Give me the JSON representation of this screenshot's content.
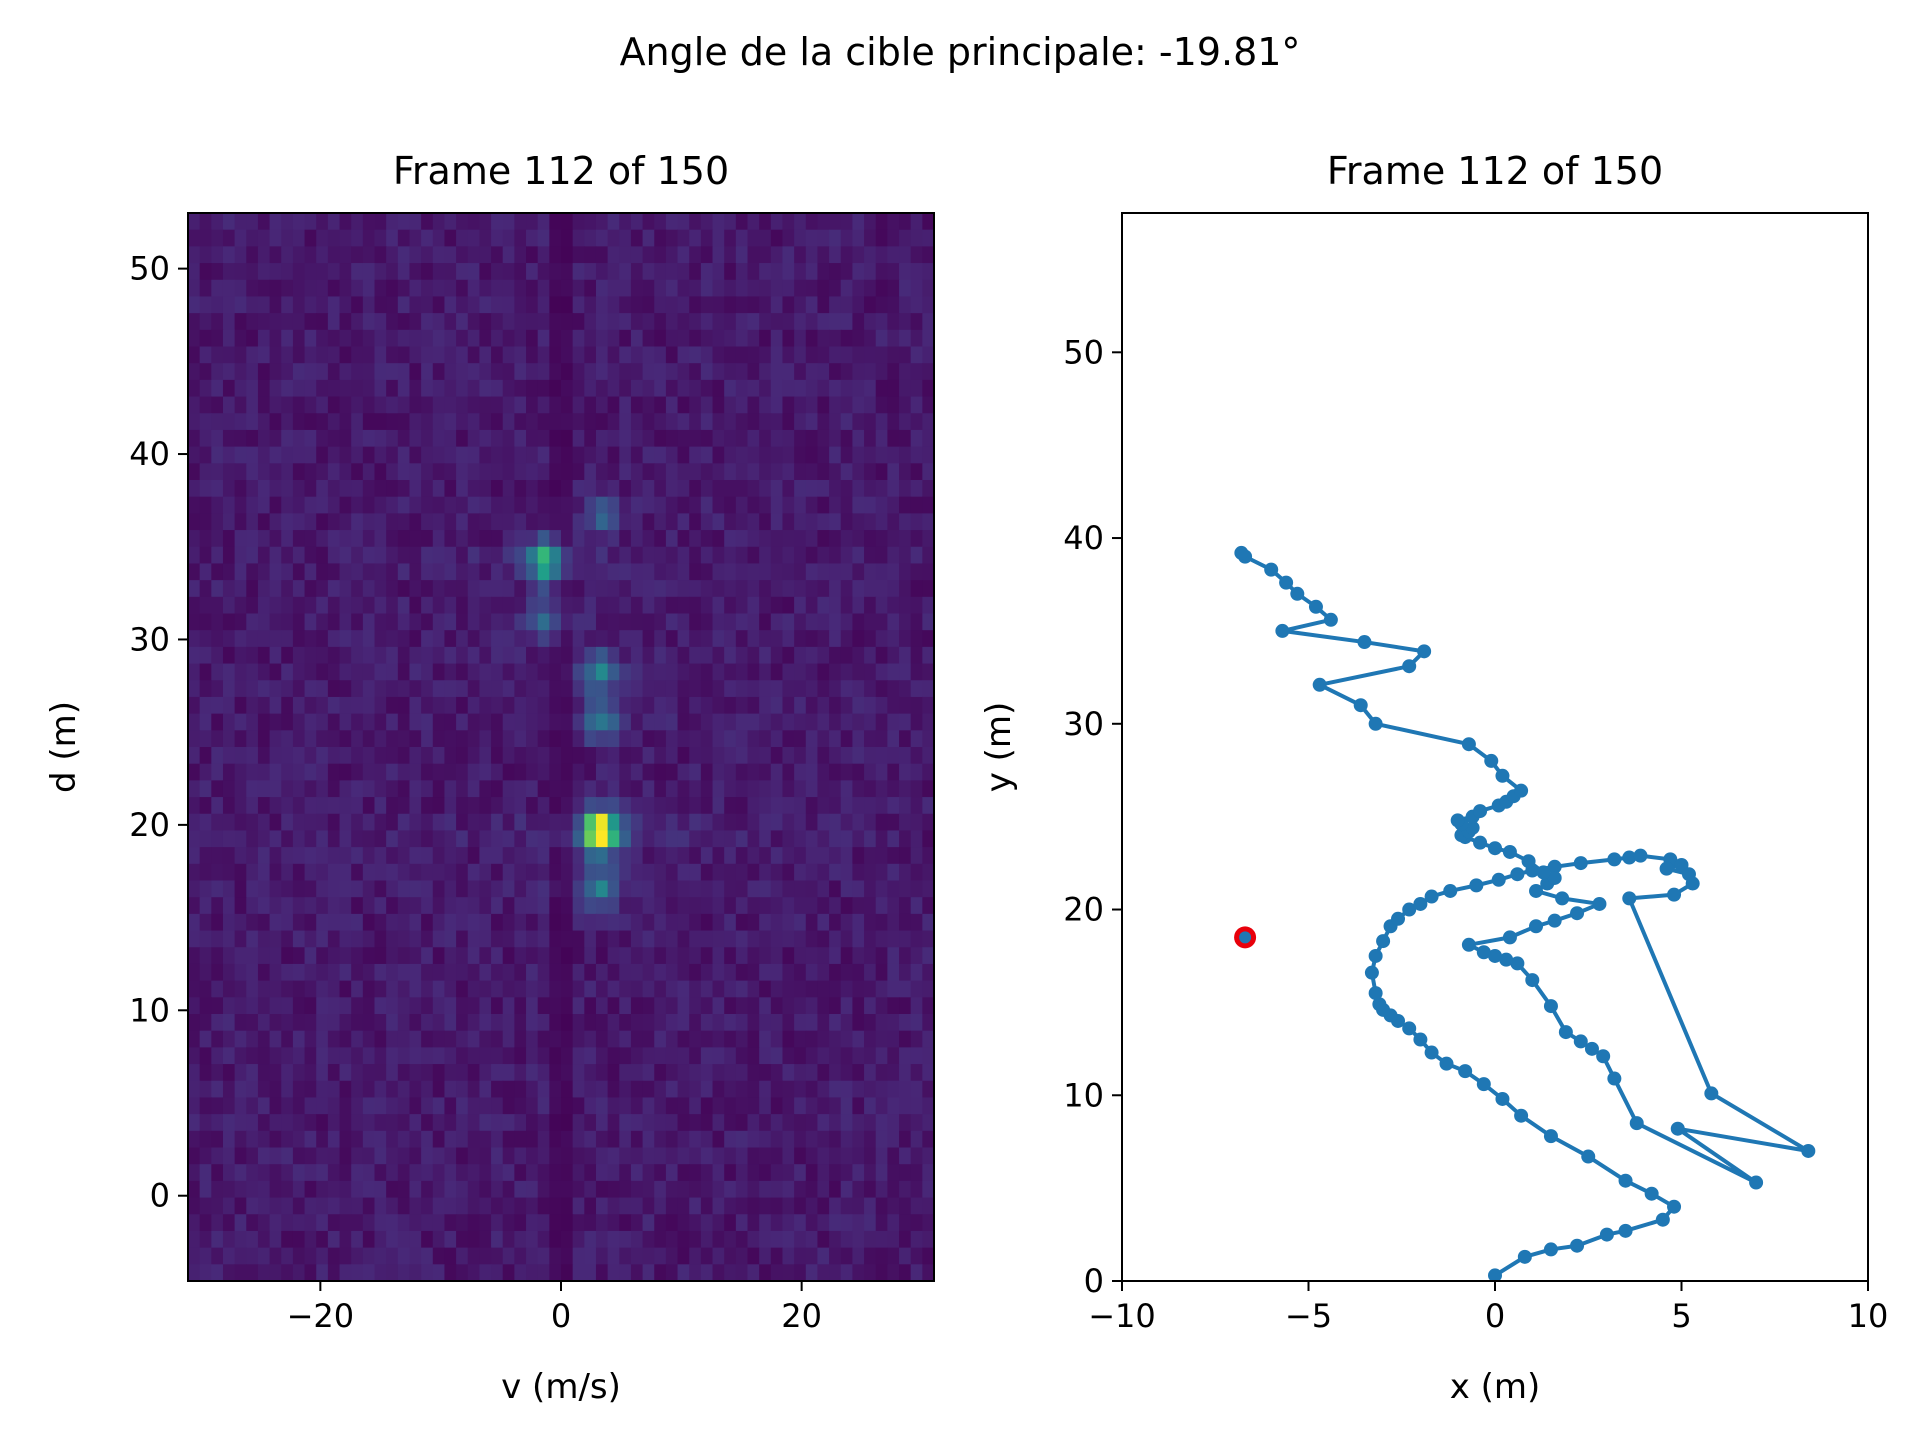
{
  "figure": {
    "suptitle": "Angle de la cible principale: -19.81°"
  },
  "chart_data": [
    {
      "type": "heatmap",
      "title": "Frame 112 of 150",
      "xlabel": "v (m/s)",
      "ylabel": "d (m)",
      "xlim": [
        -31,
        31
      ],
      "ylim": [
        -4.6,
        53
      ],
      "xticks": [
        -20,
        0,
        20
      ],
      "yticks": [
        0,
        10,
        20,
        30,
        40,
        50
      ],
      "colormap": "viridis",
      "grid": false,
      "peaks": [
        {
          "v": 3.3,
          "d": 19.6,
          "intensity": 1.0
        },
        {
          "v": -1.3,
          "d": 34.2,
          "intensity": 0.55
        },
        {
          "v": 3.3,
          "d": 28.2,
          "intensity": 0.35
        },
        {
          "v": 3.3,
          "d": 25.6,
          "intensity": 0.3
        },
        {
          "v": 3.3,
          "d": 16.6,
          "intensity": 0.35
        },
        {
          "v": -1.3,
          "d": 31.0,
          "intensity": 0.25
        },
        {
          "v": 3.3,
          "d": 36.6,
          "intensity": 0.2
        }
      ]
    },
    {
      "type": "line",
      "title": "Frame 112 of 150",
      "xlabel": "x (m)",
      "ylabel": "y (m)",
      "xlim": [
        -10,
        10
      ],
      "ylim": [
        0,
        57.5
      ],
      "xticks": [
        -10,
        -5,
        0,
        5,
        10
      ],
      "yticks": [
        0,
        10,
        20,
        30,
        40,
        50
      ],
      "grid": false,
      "series_color": "#1f77b4",
      "current_marker_color": "#e8000b",
      "x": [
        0.0,
        0.8,
        1.5,
        2.2,
        3.0,
        3.5,
        4.5,
        4.8,
        4.2,
        3.5,
        2.5,
        1.5,
        0.7,
        0.2,
        -0.3,
        -0.8,
        -1.3,
        -1.7,
        -2.0,
        -2.3,
        -2.6,
        -2.8,
        -3.0,
        -3.1,
        -3.2,
        -3.3,
        -3.2,
        -3.0,
        -2.8,
        -2.6,
        -2.3,
        -2.0,
        -1.7,
        -1.2,
        -0.5,
        0.1,
        0.6,
        1.0,
        1.6,
        2.3,
        3.2,
        3.6,
        3.9,
        4.7,
        5.0,
        4.6,
        5.2,
        5.3,
        4.8,
        3.6,
        5.8,
        8.4,
        4.9,
        7.0,
        3.8,
        3.2,
        2.9,
        2.6,
        2.3,
        1.9,
        1.5,
        1.0,
        0.6,
        0.3,
        0.0,
        -0.3,
        -0.7,
        0.4,
        1.1,
        1.6,
        2.2,
        2.8,
        1.8,
        1.1,
        1.4,
        1.6,
        1.3,
        0.9,
        0.4,
        0.0,
        -0.4,
        -0.8,
        -0.9,
        -0.7,
        -0.6,
        -0.9,
        -1.0,
        -0.6,
        -0.4,
        0.1,
        0.3,
        0.5,
        0.7,
        0.2,
        -0.1,
        -0.7,
        -3.2,
        -3.6,
        -4.7,
        -2.3,
        -1.9,
        -3.5,
        -5.7,
        -4.4,
        -4.8,
        -5.3,
        -5.6,
        -6.0,
        -6.7,
        -6.8
      ],
      "y": [
        0.3,
        1.3,
        1.7,
        1.9,
        2.5,
        2.7,
        3.3,
        4.0,
        4.7,
        5.4,
        6.7,
        7.8,
        8.9,
        9.8,
        10.6,
        11.3,
        11.7,
        12.3,
        13.0,
        13.6,
        14.0,
        14.3,
        14.6,
        14.9,
        15.5,
        16.6,
        17.5,
        18.3,
        19.1,
        19.5,
        20.0,
        20.3,
        20.7,
        21.0,
        21.3,
        21.6,
        21.9,
        22.1,
        22.3,
        22.5,
        22.7,
        22.8,
        22.9,
        22.7,
        22.4,
        22.2,
        21.9,
        21.4,
        20.8,
        20.6,
        10.1,
        7.0,
        8.2,
        5.3,
        8.5,
        10.9,
        12.1,
        12.5,
        12.9,
        13.4,
        14.8,
        16.2,
        17.1,
        17.3,
        17.5,
        17.7,
        18.1,
        18.5,
        19.1,
        19.4,
        19.8,
        20.3,
        20.6,
        21.0,
        21.4,
        21.7,
        22.0,
        22.6,
        23.1,
        23.3,
        23.6,
        23.9,
        24.0,
        24.2,
        24.4,
        24.6,
        24.8,
        25.0,
        25.3,
        25.6,
        25.8,
        26.1,
        26.4,
        27.2,
        28.0,
        28.9,
        30.0,
        31.0,
        32.1,
        33.1,
        33.9,
        34.4,
        35.0,
        35.6,
        36.3,
        37.0,
        37.6,
        38.3,
        39.0,
        39.2
      ],
      "current_point": {
        "x": -6.7,
        "y": 18.5
      }
    }
  ]
}
